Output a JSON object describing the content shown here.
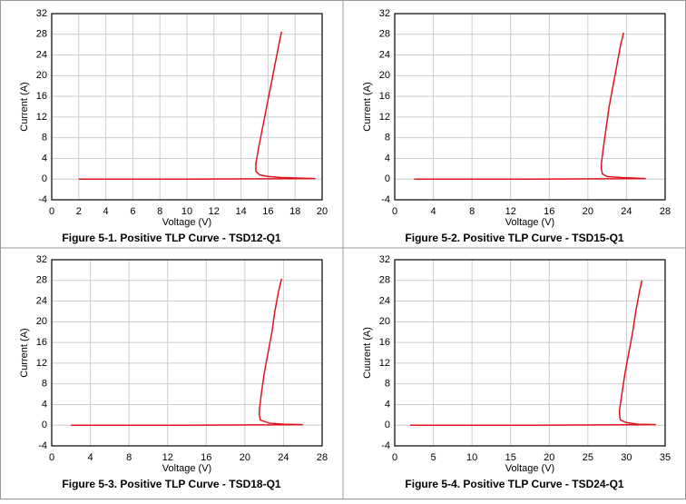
{
  "chart_data": [
    {
      "type": "line",
      "title": "Figure 5-1. Positive TLP Curve - TSD12-Q1",
      "x_label": "Voltage (V)",
      "y_label": "Current (A)",
      "color": "#e0141e",
      "grid": true,
      "x": [
        2,
        10,
        19.5,
        17,
        16,
        15.4,
        15.1,
        15.1,
        15.3,
        15.6,
        15.9,
        16.2,
        16.5,
        16.8,
        17.0
      ],
      "values": [
        0,
        0,
        0.1,
        0.3,
        0.5,
        0.8,
        1.5,
        3,
        6,
        10,
        14,
        18,
        22,
        26,
        28.5
      ],
      "xlim": [
        0,
        20
      ],
      "xticks": [
        0,
        2,
        4,
        6,
        8,
        10,
        12,
        14,
        16,
        18,
        20
      ],
      "ylim": [
        -4,
        32
      ],
      "yticks": [
        -4,
        0,
        4,
        8,
        12,
        16,
        20,
        24,
        28,
        32
      ]
    },
    {
      "type": "line",
      "title": "Figure 5-2. Positive TLP Curve - TSD15-Q1",
      "x_label": "Voltage (V)",
      "y_label": "Current (A)",
      "color": "#e0141e",
      "grid": true,
      "x": [
        2,
        14,
        26,
        23.5,
        22,
        21.5,
        21.4,
        21.4,
        21.6,
        21.9,
        22.2,
        22.6,
        23,
        23.4,
        23.7
      ],
      "values": [
        0,
        0,
        0.1,
        0.3,
        0.5,
        1,
        2,
        3,
        6,
        10,
        14,
        18,
        22,
        26,
        28.3
      ],
      "xlim": [
        0,
        28
      ],
      "xticks": [
        0,
        4,
        8,
        12,
        16,
        20,
        24,
        28
      ],
      "ylim": [
        -4,
        32
      ],
      "yticks": [
        -4,
        0,
        4,
        8,
        12,
        16,
        20,
        24,
        28,
        32
      ]
    },
    {
      "type": "line",
      "title": "Figure 5-3. Positive TLP Curve - TSD18-Q1",
      "x_label": "Voltage (V)",
      "y_label": "Current (A)",
      "color": "#e0141e",
      "grid": true,
      "x": [
        2,
        14,
        26,
        24,
        22.5,
        21.6,
        21.5,
        21.5,
        21.7,
        22,
        22.4,
        22.8,
        23.1,
        23.5,
        23.8
      ],
      "values": [
        0,
        0,
        0.1,
        0.2,
        0.4,
        1,
        2,
        3,
        6,
        10,
        14,
        18,
        22,
        26,
        28.3
      ],
      "xlim": [
        0,
        28
      ],
      "xticks": [
        0,
        4,
        8,
        12,
        16,
        20,
        24,
        28
      ],
      "ylim": [
        -4,
        32
      ],
      "yticks": [
        -4,
        0,
        4,
        8,
        12,
        16,
        20,
        24,
        28,
        32
      ]
    },
    {
      "type": "line",
      "title": "Figure 5-4. Positive TLP Curve - TSD24-Q1",
      "x_label": "Voltage (V)",
      "y_label": "Cuurent (A)",
      "color": "#e0141e",
      "grid": true,
      "x": [
        2,
        18,
        33.8,
        31.5,
        30,
        29.2,
        29.1,
        29.1,
        29.4,
        29.8,
        30.3,
        30.8,
        31.2,
        31.7,
        32
      ],
      "values": [
        0,
        0,
        0.1,
        0.2,
        0.5,
        1,
        2,
        3,
        6,
        10,
        14,
        18,
        22,
        26,
        28
      ],
      "xlim": [
        0,
        35
      ],
      "xticks": [
        0,
        5,
        10,
        15,
        20,
        25,
        30,
        35
      ],
      "ylim": [
        -4,
        32
      ],
      "yticks": [
        -4,
        0,
        4,
        8,
        12,
        16,
        20,
        24,
        28,
        32
      ]
    }
  ]
}
